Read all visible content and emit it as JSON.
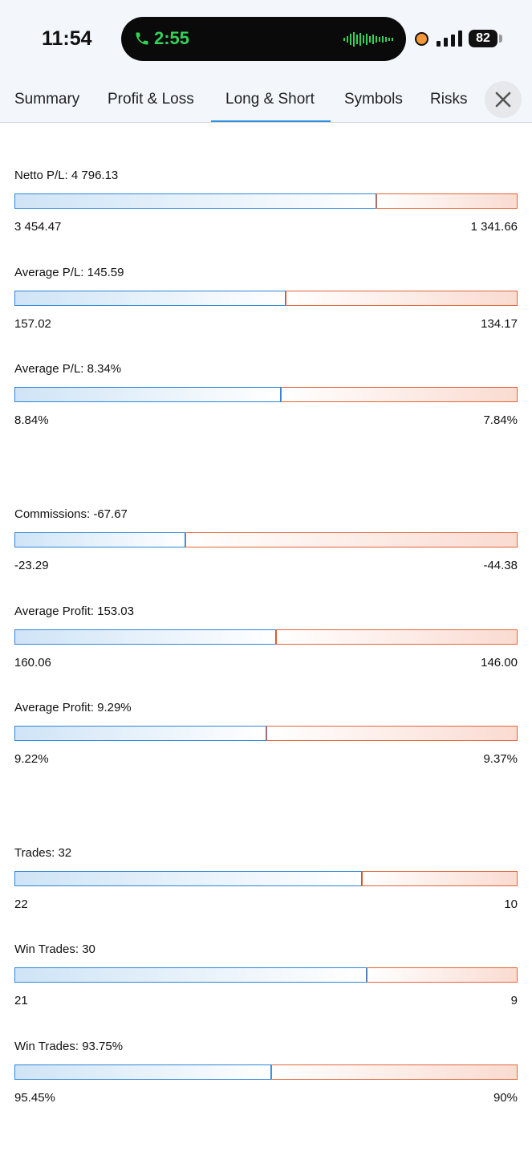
{
  "status_bar": {
    "time": "11:54",
    "call_time": "2:55",
    "battery": "82",
    "colors": {
      "call_green": "#35d058",
      "record_dot": "#f4963a"
    }
  },
  "tabs": [
    {
      "label": "Summary",
      "active": false
    },
    {
      "label": "Profit & Loss",
      "active": false
    },
    {
      "label": "Long & Short",
      "active": true
    },
    {
      "label": "Symbols",
      "active": false
    },
    {
      "label": "Risks",
      "active": false
    }
  ],
  "colors": {
    "long": "#2e86d8",
    "short": "#e0653a",
    "accent": "#2c8fdc"
  },
  "metrics": [
    {
      "label": "Netto P/L: 4 796.13",
      "long_value": "3 454.47",
      "short_value": "1 341.66",
      "long_share": 0.72
    },
    {
      "label": "Average P/L: 145.59",
      "long_value": "157.02",
      "short_value": "134.17",
      "long_share": 0.539
    },
    {
      "label": "Average P/L: 8.34%",
      "long_value": "8.84%",
      "short_value": "7.84%",
      "long_share": 0.53
    },
    {
      "label": "Commissions: -67.67",
      "long_value": "-23.29",
      "short_value": "-44.38",
      "long_share": 0.34
    },
    {
      "label": "Average Profit: 153.03",
      "long_value": "160.06",
      "short_value": "146.00",
      "long_share": 0.52
    },
    {
      "label": "Average Profit: 9.29%",
      "long_value": "9.22%",
      "short_value": "9.37%",
      "long_share": 0.5
    },
    {
      "label": "Trades: 32",
      "long_value": "22",
      "short_value": "10",
      "long_share": 0.69
    },
    {
      "label": "Win Trades: 30",
      "long_value": "21",
      "short_value": "9",
      "long_share": 0.7
    },
    {
      "label": "Win Trades: 93.75%",
      "long_value": "95.45%",
      "short_value": "90%",
      "long_share": 0.51
    }
  ]
}
